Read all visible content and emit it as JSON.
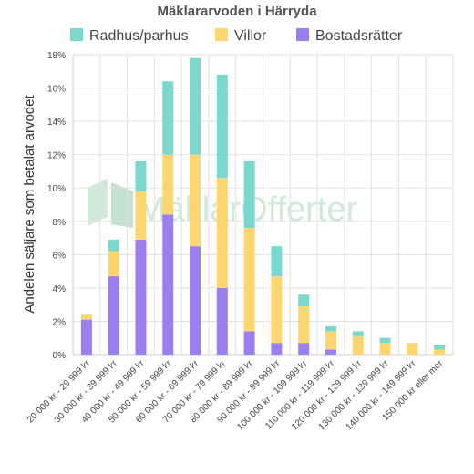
{
  "chart_data": {
    "type": "bar",
    "stacked": true,
    "title": "Mäklararvoden i Härryda",
    "ylabel": "Andelen säljare som betalat arvodet",
    "xlabel": "",
    "ylim": [
      0,
      18
    ],
    "yticks": [
      0,
      2,
      4,
      6,
      8,
      10,
      12,
      14,
      16,
      18
    ],
    "ytick_suffix": "%",
    "grid": true,
    "legend_position": "top",
    "watermark": "MäklarOfferter",
    "categories": [
      "20 000 kr - 29 999 kr",
      "30 000 kr - 39 999 kr",
      "40 000 kr - 49 999 kr",
      "50 000 kr - 59 999 kr",
      "60 000 kr - 69 999 kr",
      "70 000 kr - 79 999 kr",
      "80 000 kr - 89 999 kr",
      "90 000 kr - 99 999 kr",
      "100 000 kr - 109 999 kr",
      "110 000 kr - 119 999 kr",
      "120 000 kr - 129 999 kr",
      "130 000 kr - 139 999 kr",
      "140 000 kr - 149 999 kr",
      "150 000 kr eller mer"
    ],
    "series": [
      {
        "name": "Bostadsrätter",
        "color": "#9b7ef0",
        "values": [
          2.1,
          4.7,
          6.9,
          8.4,
          6.5,
          4.0,
          1.4,
          0.7,
          0.7,
          0.3,
          0.0,
          0.0,
          0.0,
          0.0
        ]
      },
      {
        "name": "Villor",
        "color": "#fdd670",
        "values": [
          0.3,
          1.5,
          2.9,
          3.6,
          5.5,
          6.6,
          6.2,
          4.0,
          2.2,
          1.1,
          1.1,
          0.7,
          0.7,
          0.3
        ]
      },
      {
        "name": "Radhus/parhus",
        "color": "#7bd8cc",
        "values": [
          0.0,
          0.7,
          1.8,
          4.4,
          5.8,
          6.2,
          4.0,
          1.8,
          0.7,
          0.3,
          0.3,
          0.3,
          0.0,
          0.3
        ]
      }
    ],
    "legend_order": [
      "Radhus/parhus",
      "Villor",
      "Bostadsrätter"
    ]
  }
}
